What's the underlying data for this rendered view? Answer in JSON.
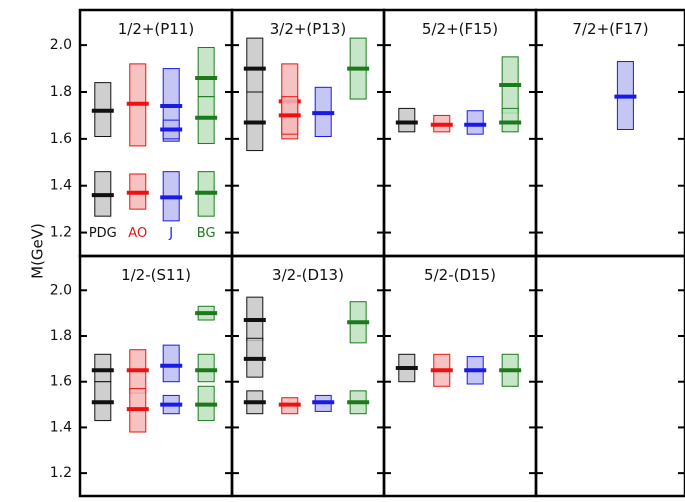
{
  "chart_data": {
    "type": "scatter",
    "ylabel": "M(GeV)",
    "ylim": [
      1.1,
      2.15
    ],
    "yticks": [
      1.2,
      1.4,
      1.6,
      1.8,
      2.0
    ],
    "tick_labels": [
      "1.2",
      "1.4",
      "1.6",
      "1.8",
      "2.0"
    ],
    "grid": false,
    "legend_placement": "bottom of first panel",
    "series": [
      {
        "name": "PDG",
        "color": "#111111",
        "fill": "#c7c7c7"
      },
      {
        "name": "AO",
        "color": "#ee1111",
        "fill": "#f4b8b8"
      },
      {
        "name": "J",
        "color": "#1a1ae6",
        "fill": "#bcbcf2"
      },
      {
        "name": "BG",
        "color": "#1c7a1c",
        "fill": "#bde0bd"
      }
    ],
    "panels": [
      {
        "title": "1/2+(P11)",
        "states": [
          {
            "series": "PDG",
            "mass": 1.72,
            "low": 1.61,
            "high": 1.84
          },
          {
            "series": "PDG",
            "mass": 1.36,
            "low": 1.27,
            "high": 1.46
          },
          {
            "series": "AO",
            "mass": 1.75,
            "low": 1.57,
            "high": 1.92
          },
          {
            "series": "AO",
            "mass": 1.37,
            "low": 1.3,
            "high": 1.45
          },
          {
            "series": "J",
            "mass": 1.74,
            "low": 1.59,
            "high": 1.9
          },
          {
            "series": "J",
            "mass": 1.64,
            "low": 1.6,
            "high": 1.68
          },
          {
            "series": "J",
            "mass": 1.35,
            "low": 1.25,
            "high": 1.46
          },
          {
            "series": "BG",
            "mass": 1.86,
            "low": 1.78,
            "high": 1.99
          },
          {
            "series": "BG",
            "mass": 1.69,
            "low": 1.58,
            "high": 1.78
          },
          {
            "series": "BG",
            "mass": 1.37,
            "low": 1.27,
            "high": 1.46
          }
        ]
      },
      {
        "title": "3/2+(P13)",
        "states": [
          {
            "series": "PDG",
            "mass": 1.9,
            "low": 1.8,
            "high": 2.03
          },
          {
            "series": "PDG",
            "mass": 1.67,
            "low": 1.55,
            "high": 1.8
          },
          {
            "series": "AO",
            "mass": 1.76,
            "low": 1.6,
            "high": 1.92
          },
          {
            "series": "AO",
            "mass": 1.7,
            "low": 1.62,
            "high": 1.78
          },
          {
            "series": "J",
            "mass": 1.71,
            "low": 1.61,
            "high": 1.82
          },
          {
            "series": "BG",
            "mass": 1.9,
            "low": 1.77,
            "high": 2.03
          }
        ]
      },
      {
        "title": "5/2+(F15)",
        "states": [
          {
            "series": "PDG",
            "mass": 1.67,
            "low": 1.63,
            "high": 1.73
          },
          {
            "series": "AO",
            "mass": 1.66,
            "low": 1.63,
            "high": 1.7
          },
          {
            "series": "J",
            "mass": 1.66,
            "low": 1.62,
            "high": 1.72
          },
          {
            "series": "BG",
            "mass": 1.83,
            "low": 1.71,
            "high": 1.95
          },
          {
            "series": "BG",
            "mass": 1.67,
            "low": 1.63,
            "high": 1.73
          }
        ]
      },
      {
        "title": "7/2+(F17)",
        "states": [
          {
            "series": "J",
            "mass": 1.78,
            "low": 1.64,
            "high": 1.93
          }
        ]
      },
      {
        "title": "1/2-(S11)",
        "states": [
          {
            "series": "PDG",
            "mass": 1.65,
            "low": 1.6,
            "high": 1.72
          },
          {
            "series": "PDG",
            "mass": 1.51,
            "low": 1.43,
            "high": 1.6
          },
          {
            "series": "AO",
            "mass": 1.65,
            "low": 1.55,
            "high": 1.74
          },
          {
            "series": "AO",
            "mass": 1.48,
            "low": 1.38,
            "high": 1.57
          },
          {
            "series": "J",
            "mass": 1.67,
            "low": 1.6,
            "high": 1.76
          },
          {
            "series": "J",
            "mass": 1.5,
            "low": 1.46,
            "high": 1.54
          },
          {
            "series": "BG",
            "mass": 1.9,
            "low": 1.87,
            "high": 1.93
          },
          {
            "series": "BG",
            "mass": 1.65,
            "low": 1.6,
            "high": 1.72
          },
          {
            "series": "BG",
            "mass": 1.5,
            "low": 1.43,
            "high": 1.58
          }
        ]
      },
      {
        "title": "3/2-(D13)",
        "states": [
          {
            "series": "PDG",
            "mass": 1.87,
            "low": 1.78,
            "high": 1.97
          },
          {
            "series": "PDG",
            "mass": 1.7,
            "low": 1.62,
            "high": 1.79
          },
          {
            "series": "PDG",
            "mass": 1.51,
            "low": 1.46,
            "high": 1.56
          },
          {
            "series": "AO",
            "mass": 1.5,
            "low": 1.46,
            "high": 1.53
          },
          {
            "series": "J",
            "mass": 1.51,
            "low": 1.47,
            "high": 1.54
          },
          {
            "series": "BG",
            "mass": 1.86,
            "low": 1.77,
            "high": 1.95
          },
          {
            "series": "BG",
            "mass": 1.51,
            "low": 1.46,
            "high": 1.56
          }
        ]
      },
      {
        "title": "5/2-(D15)",
        "states": [
          {
            "series": "PDG",
            "mass": 1.66,
            "low": 1.6,
            "high": 1.72
          },
          {
            "series": "AO",
            "mass": 1.65,
            "low": 1.58,
            "high": 1.72
          },
          {
            "series": "J",
            "mass": 1.65,
            "low": 1.59,
            "high": 1.71
          },
          {
            "series": "BG",
            "mass": 1.65,
            "low": 1.58,
            "high": 1.72
          }
        ]
      },
      {
        "title": "",
        "states": []
      }
    ]
  }
}
